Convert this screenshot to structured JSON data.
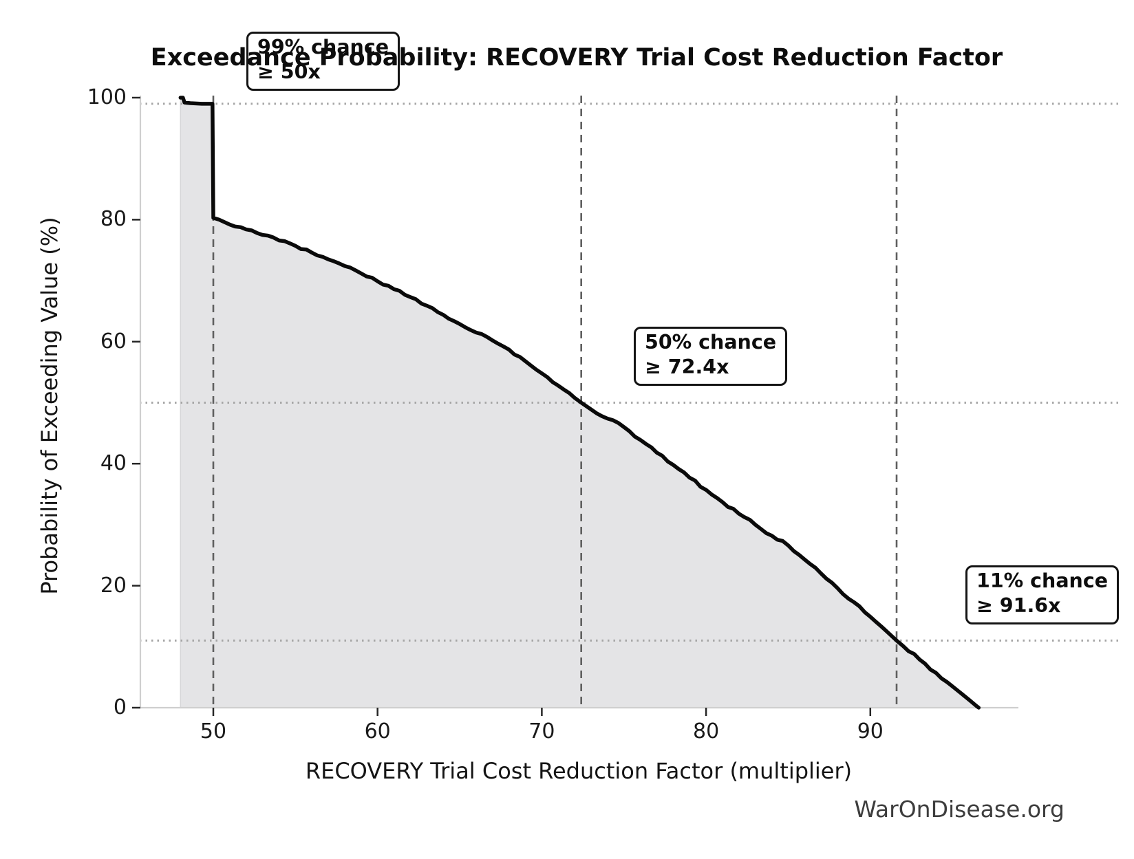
{
  "figure": {
    "watermark": "WarOnDisease.org"
  },
  "chart_data": {
    "type": "line",
    "subtype": "exceedance-probability-curve",
    "title": "Exceedance Probability: RECOVERY Trial Cost Reduction Factor",
    "xlabel": "RECOVERY Trial Cost Reduction Factor (multiplier)",
    "ylabel": "Probability of Exceeding Value (%)",
    "x_ticks": [
      50,
      60,
      70,
      80,
      90
    ],
    "y_ticks": [
      0,
      20,
      40,
      60,
      80,
      100
    ],
    "xlim": [
      45.5,
      99.0
    ],
    "ylim": [
      0,
      101
    ],
    "legend_position": "none",
    "grid": "dotted horizontal and dashed vertical reference lines at markers only",
    "area_fill": true,
    "markers": [
      {
        "chance_pct": 99,
        "value_x": 50.0,
        "line1": "99% chance",
        "line2": "≥ 50x"
      },
      {
        "chance_pct": 50,
        "value_x": 72.4,
        "line1": "50% chance",
        "line2": "≥ 72.4x"
      },
      {
        "chance_pct": 11,
        "value_x": 91.6,
        "line1": "11% chance",
        "line2": "≥ 91.6x"
      }
    ],
    "curve_points": [
      [
        48.0,
        100
      ],
      [
        48.15,
        100
      ],
      [
        48.25,
        99.2
      ],
      [
        48.6,
        99.1
      ],
      [
        49.3,
        99.0
      ],
      [
        49.95,
        99.0
      ],
      [
        50.0,
        80.3
      ],
      [
        50.35,
        80.0
      ],
      [
        51,
        79.2
      ],
      [
        52,
        78.4
      ],
      [
        53,
        77.5
      ],
      [
        54,
        76.6
      ],
      [
        55,
        75.7
      ],
      [
        56,
        74.6
      ],
      [
        57,
        73.5
      ],
      [
        58,
        72.4
      ],
      [
        59,
        71.2
      ],
      [
        60,
        69.9
      ],
      [
        61,
        68.6
      ],
      [
        62,
        67.3
      ],
      [
        63,
        65.9
      ],
      [
        64,
        64.4
      ],
      [
        65,
        62.9
      ],
      [
        66,
        61.5
      ],
      [
        67,
        60.2
      ],
      [
        68,
        58.7
      ],
      [
        69,
        56.8
      ],
      [
        70,
        54.8
      ],
      [
        71,
        52.8
      ],
      [
        72,
        50.8
      ],
      [
        72.4,
        50.0
      ],
      [
        73,
        48.9
      ],
      [
        74,
        47.4
      ],
      [
        75,
        46.0
      ],
      [
        76,
        43.9
      ],
      [
        77,
        41.8
      ],
      [
        78,
        39.8
      ],
      [
        79,
        37.7
      ],
      [
        80,
        35.7
      ],
      [
        81,
        33.7
      ],
      [
        82,
        31.8
      ],
      [
        83,
        30.0
      ],
      [
        84,
        28.2
      ],
      [
        85,
        26.6
      ],
      [
        86,
        24.3
      ],
      [
        87,
        22.0
      ],
      [
        88,
        19.6
      ],
      [
        89,
        17.3
      ],
      [
        90,
        14.9
      ],
      [
        91,
        12.5
      ],
      [
        91.6,
        11.0
      ],
      [
        92,
        10.1
      ],
      [
        93,
        7.9
      ],
      [
        94,
        5.7
      ],
      [
        95,
        3.5
      ],
      [
        95.6,
        2.2
      ],
      [
        96.1,
        1.1
      ],
      [
        96.45,
        0.3
      ],
      [
        96.6,
        0.0
      ]
    ]
  },
  "colors": {
    "curve": "#0a0a0a",
    "fill": "#e4e4e6",
    "fill_edge": "#d6d6d8",
    "dashed_marker": "#5f5f5f",
    "dotted_marker": "#a6a6a6",
    "spine": "#cfcfcf",
    "tick": "#262626",
    "text": "#141414",
    "watermark_text": "#3d3d3d"
  }
}
